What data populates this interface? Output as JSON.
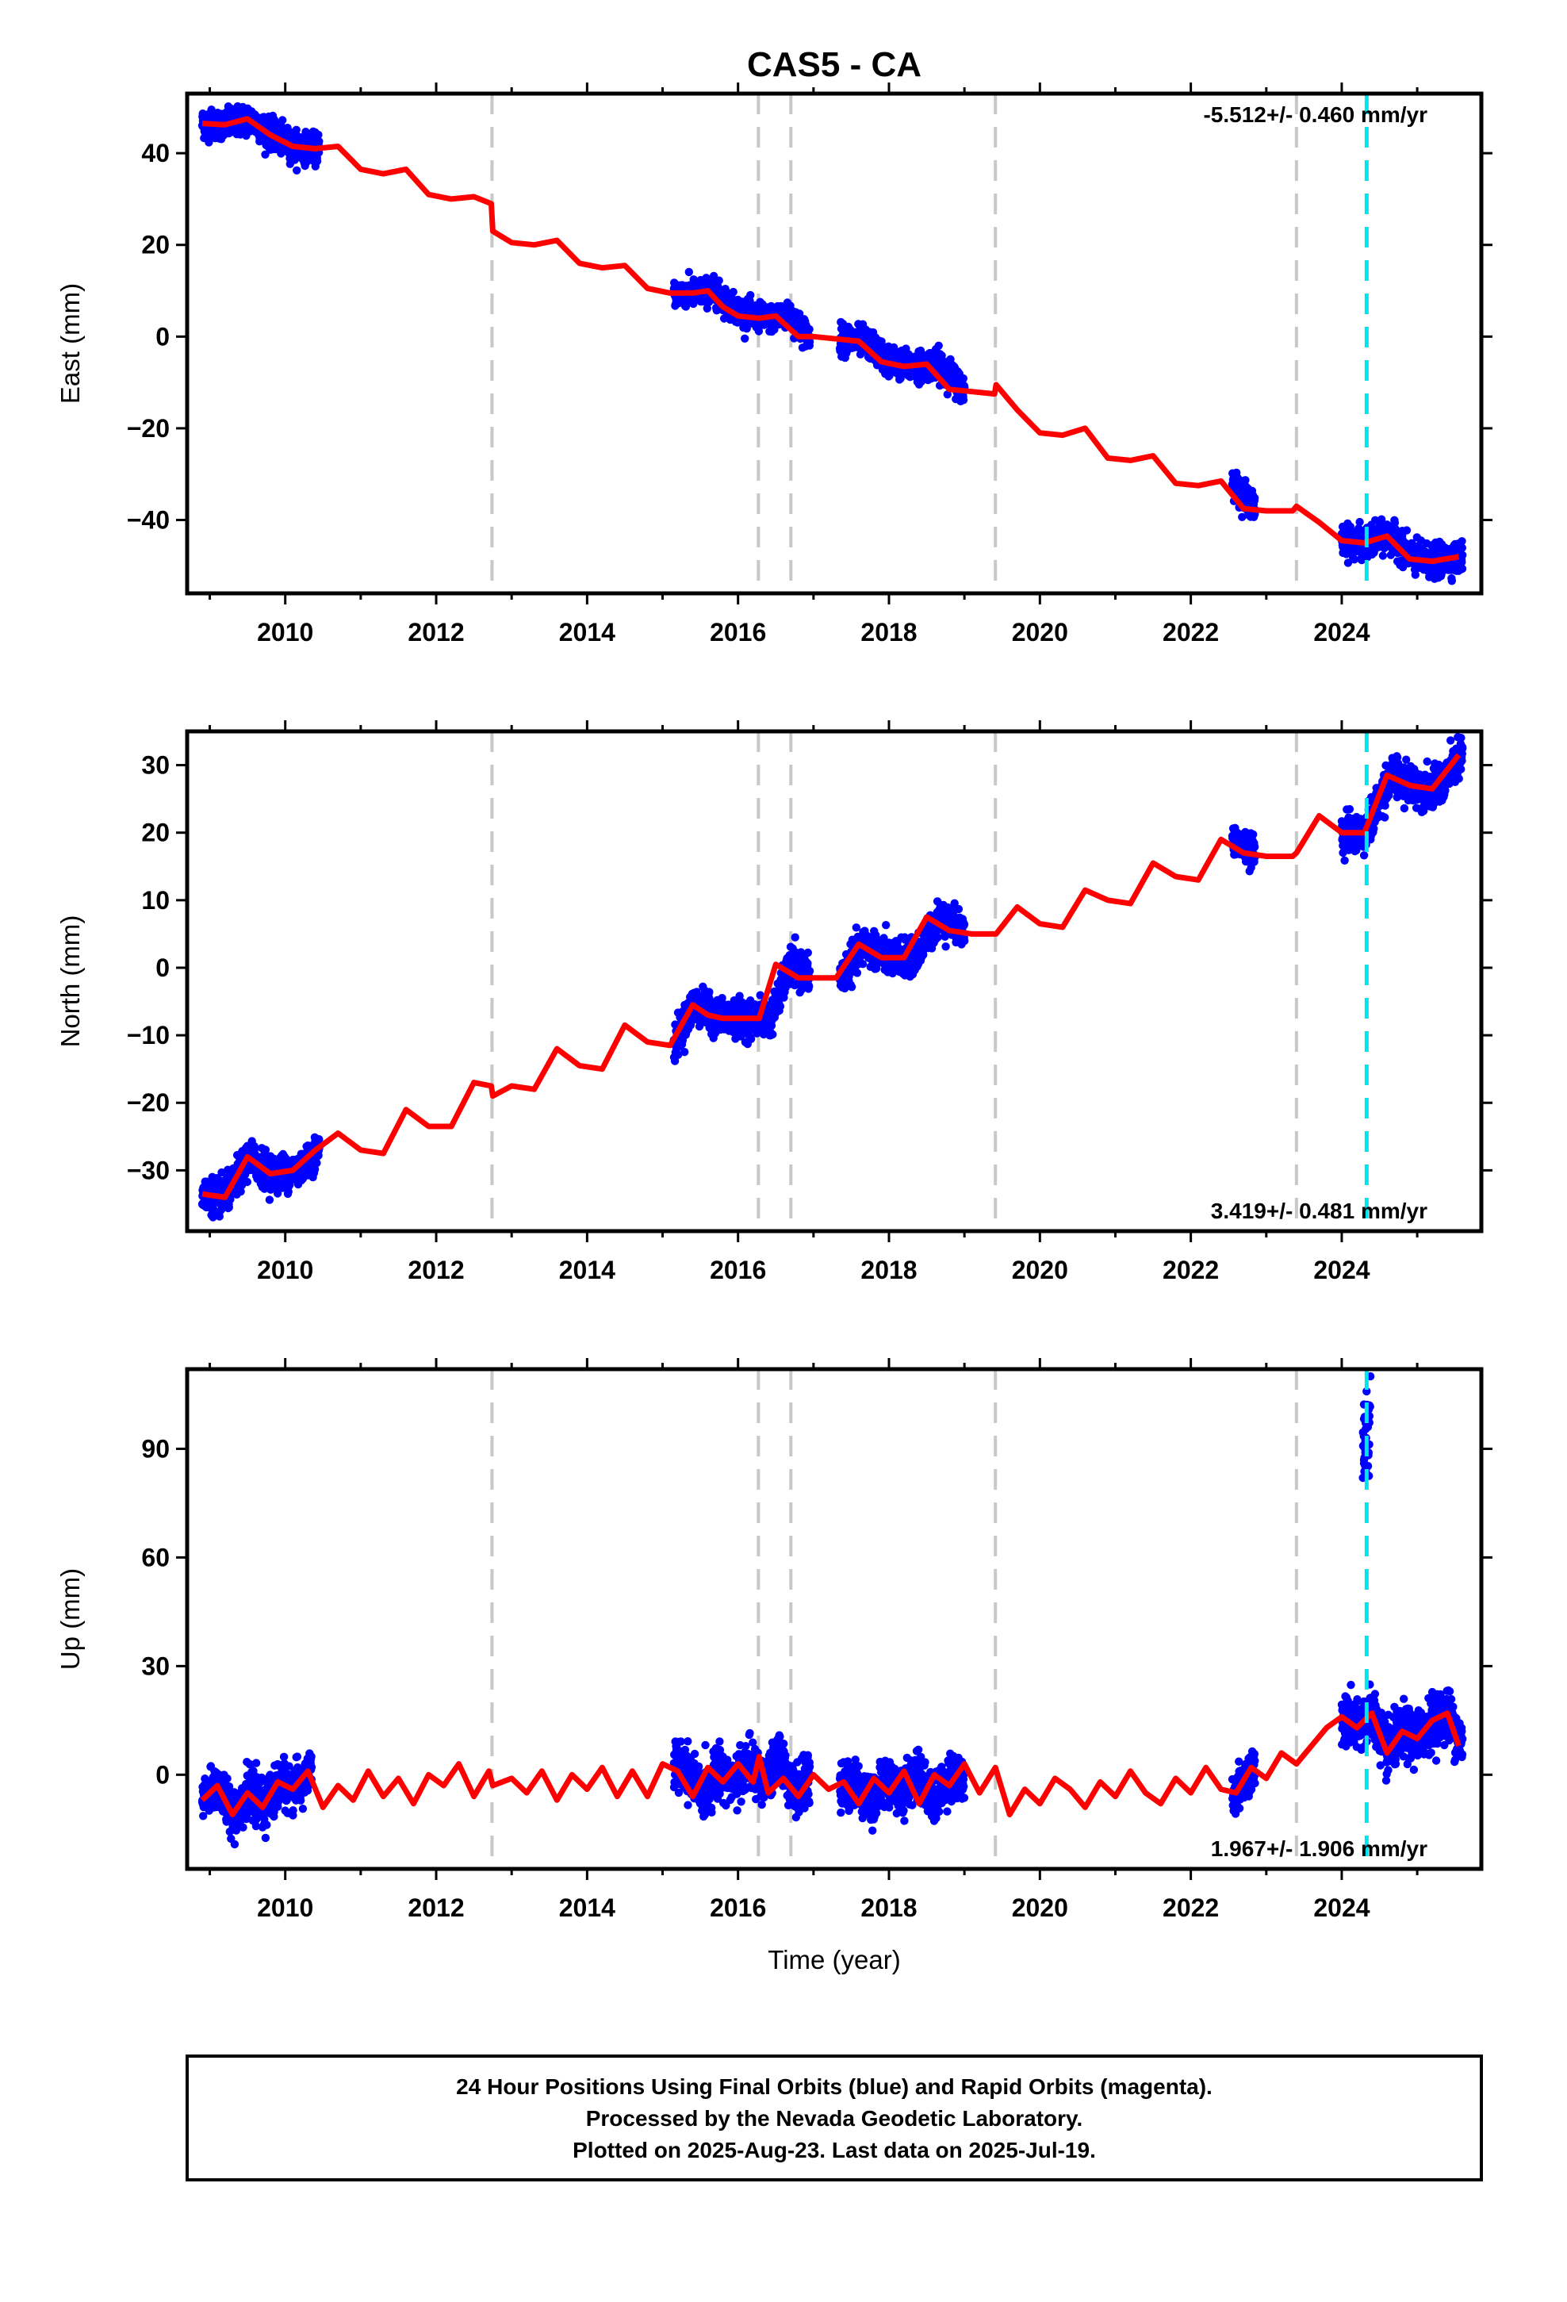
{
  "title": "CAS5 - CA",
  "xlabel": "Time (year)",
  "caption": [
    "24 Hour Positions Using Final Orbits (blue) and Rapid Orbits (magenta).",
    "Processed by the Nevada Geodetic Laboratory.",
    "Plotted on 2025-Aug-23. Last data on 2025-Jul-19."
  ],
  "colors": {
    "data": "#0000ff",
    "model": "#ff0000",
    "equipment_change": "#c8c8c8",
    "earthquake": "#00e5ee"
  },
  "chart_data": [
    {
      "type": "scatter",
      "ylabel": "East (mm)",
      "rate_text": "-5.512+/- 0.460 mm/yr",
      "rate_position": "top-right",
      "xlim": [
        2008.7,
        2025.85
      ],
      "ylim": [
        -56,
        53
      ],
      "xticks": [
        2010,
        2012,
        2014,
        2016,
        2018,
        2020,
        2022,
        2024
      ],
      "xtick_labels": [
        "2010",
        "2012",
        "2014",
        "2016",
        "2018",
        "2020",
        "2022",
        "2024"
      ],
      "yticks": [
        -40,
        -20,
        0,
        20,
        40
      ],
      "ytick_labels": [
        "−40",
        "−20",
        "0",
        "20",
        "40"
      ],
      "model_line": {
        "x": [
          2008.9,
          2009.2,
          2009.5,
          2009.8,
          2010.1,
          2010.4,
          2010.7,
          2011.0,
          2011.3,
          2011.6,
          2011.9,
          2012.2,
          2012.5,
          2012.73,
          2012.75,
          2013.0,
          2013.3,
          2013.6,
          2013.9,
          2014.2,
          2014.5,
          2014.8,
          2015.1,
          2015.4,
          2015.6,
          2015.8,
          2016.0,
          2016.28,
          2016.5,
          2016.8,
          2017.0,
          2017.3,
          2017.6,
          2017.9,
          2018.2,
          2018.5,
          2018.8,
          2019.1,
          2019.4,
          2019.42,
          2019.7,
          2020.0,
          2020.3,
          2020.6,
          2020.9,
          2021.2,
          2021.5,
          2021.8,
          2022.1,
          2022.4,
          2022.7,
          2023.0,
          2023.35,
          2023.4,
          2023.7,
          2024.0,
          2024.3,
          2024.6,
          2024.9,
          2025.2,
          2025.55
        ],
        "y": [
          46.5,
          46.2,
          47.5,
          44.0,
          41.5,
          41.0,
          41.5,
          36.5,
          35.5,
          36.5,
          31.0,
          30.0,
          30.5,
          29.0,
          23.0,
          20.5,
          20.0,
          21.0,
          16.0,
          15.0,
          15.5,
          10.5,
          9.5,
          9.5,
          10.0,
          6.5,
          4.5,
          4.0,
          4.5,
          0.0,
          0.0,
          -0.5,
          -1.0,
          -5.5,
          -6.5,
          -6.0,
          -11.5,
          -12.0,
          -12.5,
          -10.5,
          -16.0,
          -21.0,
          -21.5,
          -20.0,
          -26.5,
          -27.0,
          -26.0,
          -32.0,
          -32.5,
          -31.5,
          -37.5,
          -38.0,
          -38.0,
          -37.0,
          -40.5,
          -44.5,
          -45.0,
          -43.5,
          -48.5,
          -49.0,
          -48.0
        ]
      },
      "data_segments": [
        {
          "x_range": [
            2008.9,
            2010.45
          ],
          "values": [
            46.5,
            46.2,
            47.5,
            44.0,
            41.5,
            41.0
          ],
          "spread": 2.2
        },
        {
          "x_range": [
            2015.15,
            2016.95
          ],
          "values": [
            9.5,
            9.5,
            10.0,
            6.5,
            4.5,
            4.0,
            4.5,
            0.0
          ],
          "spread": 2.0
        },
        {
          "x_range": [
            2017.35,
            2019.0
          ],
          "values": [
            -0.5,
            -1.0,
            -5.5,
            -6.5,
            -6.0,
            -11.5
          ],
          "spread": 2.2
        },
        {
          "x_range": [
            2022.55,
            2022.85
          ],
          "values": [
            -31.5,
            -37.5
          ],
          "spread": 2.0
        },
        {
          "x_range": [
            2024.0,
            2025.6
          ],
          "values": [
            -44.5,
            -45.0,
            -43.5,
            -48.5,
            -49.0,
            -48.0
          ],
          "spread": 2.3
        }
      ],
      "vlines_equipment": [
        2012.74,
        2016.27,
        2016.7,
        2019.41,
        2023.4
      ],
      "vlines_earthquake": [
        2024.33
      ]
    },
    {
      "type": "scatter",
      "ylabel": "North (mm)",
      "rate_text": "3.419+/- 0.481 mm/yr",
      "rate_position": "bottom-right",
      "xlim": [
        2008.7,
        2025.85
      ],
      "ylim": [
        -39,
        35
      ],
      "xticks": [
        2010,
        2012,
        2014,
        2016,
        2018,
        2020,
        2022,
        2024
      ],
      "xtick_labels": [
        "2010",
        "2012",
        "2014",
        "2016",
        "2018",
        "2020",
        "2022",
        "2024"
      ],
      "yticks": [
        -30,
        -20,
        -10,
        0,
        10,
        20,
        30
      ],
      "ytick_labels": [
        "−30",
        "−20",
        "−10",
        "0",
        "10",
        "20",
        "30"
      ],
      "model_line": {
        "x": [
          2008.9,
          2009.2,
          2009.5,
          2009.8,
          2010.1,
          2010.4,
          2010.7,
          2011.0,
          2011.3,
          2011.6,
          2011.9,
          2012.2,
          2012.5,
          2012.73,
          2012.75,
          2013.0,
          2013.3,
          2013.6,
          2013.9,
          2014.2,
          2014.5,
          2014.8,
          2015.1,
          2015.4,
          2015.6,
          2015.8,
          2016.0,
          2016.28,
          2016.5,
          2016.8,
          2017.0,
          2017.3,
          2017.6,
          2017.9,
          2018.2,
          2018.5,
          2018.8,
          2019.1,
          2019.4,
          2019.42,
          2019.7,
          2020.0,
          2020.3,
          2020.6,
          2020.9,
          2021.2,
          2021.5,
          2021.8,
          2022.1,
          2022.4,
          2022.7,
          2023.0,
          2023.35,
          2023.4,
          2023.7,
          2024.0,
          2024.3,
          2024.6,
          2024.9,
          2025.2,
          2025.55
        ],
        "y": [
          -33.5,
          -34.0,
          -28.0,
          -30.5,
          -30.0,
          -27.0,
          -24.5,
          -27.0,
          -27.5,
          -21.0,
          -23.5,
          -23.5,
          -17.0,
          -17.5,
          -19.0,
          -17.5,
          -18.0,
          -12.0,
          -14.5,
          -15.0,
          -8.5,
          -11.0,
          -11.5,
          -5.5,
          -7.0,
          -7.5,
          -7.5,
          -7.5,
          0.5,
          -1.5,
          -1.5,
          -1.5,
          3.5,
          1.5,
          1.5,
          7.5,
          5.5,
          5.0,
          5.0,
          5.0,
          9.0,
          6.5,
          6.0,
          11.5,
          10.0,
          9.5,
          15.5,
          13.5,
          13.0,
          19.0,
          17.0,
          16.5,
          16.5,
          17.0,
          22.5,
          20.0,
          20.0,
          28.5,
          27.0,
          26.5,
          31.5
        ]
      },
      "data_segments": [
        {
          "x_range": [
            2008.9,
            2010.45
          ],
          "values": [
            -33.5,
            -34.0,
            -28.0,
            -30.5,
            -30.0,
            -27.0
          ],
          "spread": 1.8
        },
        {
          "x_range": [
            2015.15,
            2016.95
          ],
          "values": [
            -11.5,
            -5.5,
            -7.0,
            -7.5,
            -7.5,
            -7.5,
            0.5,
            -1.5
          ],
          "spread": 1.8
        },
        {
          "x_range": [
            2017.35,
            2019.0
          ],
          "values": [
            -1.5,
            3.5,
            1.5,
            1.5,
            7.5,
            5.5
          ],
          "spread": 1.8
        },
        {
          "x_range": [
            2022.55,
            2022.85
          ],
          "values": [
            19.0,
            17.0
          ],
          "spread": 1.5
        },
        {
          "x_range": [
            2024.0,
            2025.6
          ],
          "values": [
            20.0,
            20.0,
            28.5,
            27.0,
            26.5,
            31.5
          ],
          "spread": 2.0
        }
      ],
      "vlines_equipment": [
        2012.74,
        2016.27,
        2016.7,
        2019.41,
        2023.4
      ],
      "vlines_earthquake": [
        2024.33
      ]
    },
    {
      "type": "scatter",
      "ylabel": "Up (mm)",
      "rate_text": "1.967+/- 1.906 mm/yr",
      "rate_position": "bottom-right",
      "xlim": [
        2008.7,
        2025.85
      ],
      "ylim": [
        -26,
        112
      ],
      "xticks": [
        2010,
        2012,
        2014,
        2016,
        2018,
        2020,
        2022,
        2024
      ],
      "xtick_labels": [
        "2010",
        "2012",
        "2014",
        "2016",
        "2018",
        "2020",
        "2022",
        "2024"
      ],
      "yticks": [
        0,
        30,
        60,
        90
      ],
      "ytick_labels": [
        "0",
        "30",
        "60",
        "90"
      ],
      "model_line": {
        "x": [
          2008.9,
          2009.1,
          2009.3,
          2009.5,
          2009.7,
          2009.9,
          2010.1,
          2010.3,
          2010.5,
          2010.7,
          2010.9,
          2011.1,
          2011.3,
          2011.5,
          2011.7,
          2011.9,
          2012.1,
          2012.3,
          2012.5,
          2012.7,
          2012.75,
          2013.0,
          2013.2,
          2013.4,
          2013.6,
          2013.8,
          2014.0,
          2014.2,
          2014.4,
          2014.6,
          2014.8,
          2015.0,
          2015.2,
          2015.4,
          2015.6,
          2015.8,
          2016.0,
          2016.2,
          2016.28,
          2016.4,
          2016.6,
          2016.8,
          2017.0,
          2017.2,
          2017.4,
          2017.6,
          2017.8,
          2018.0,
          2018.2,
          2018.4,
          2018.6,
          2018.8,
          2019.0,
          2019.2,
          2019.41,
          2019.6,
          2019.8,
          2020.0,
          2020.2,
          2020.4,
          2020.6,
          2020.8,
          2021.0,
          2021.2,
          2021.4,
          2021.6,
          2021.8,
          2022.0,
          2022.2,
          2022.4,
          2022.6,
          2022.8,
          2023.0,
          2023.2,
          2023.4,
          2023.6,
          2023.8,
          2024.0,
          2024.2,
          2024.4,
          2024.6,
          2024.8,
          2025.0,
          2025.2,
          2025.4,
          2025.55
        ],
        "y": [
          -7.0,
          -3.0,
          -11.0,
          -5.0,
          -9.0,
          -2.0,
          -4.0,
          1.0,
          -9.0,
          -3.0,
          -7.0,
          1.0,
          -6.0,
          -1.0,
          -8.0,
          0.0,
          -3.0,
          3.0,
          -6.0,
          1.0,
          -3.0,
          -1.0,
          -5.0,
          1.0,
          -7.0,
          0.0,
          -4.0,
          2.0,
          -6.0,
          1.0,
          -6.0,
          3.0,
          1.0,
          -6.0,
          2.0,
          -2.0,
          3.0,
          -2.0,
          5.0,
          -5.0,
          -1.0,
          -6.0,
          0.0,
          -4.0,
          -2.0,
          -8.0,
          -1.0,
          -5.0,
          1.0,
          -8.0,
          0.0,
          -3.0,
          3.0,
          -5.0,
          2.0,
          -11.0,
          -4.0,
          -8.0,
          -1.0,
          -4.0,
          -9.0,
          -2.0,
          -6.0,
          1.0,
          -5.0,
          -8.0,
          -1.0,
          -5.0,
          2.0,
          -4.0,
          -5.0,
          2.0,
          -1.0,
          6.0,
          3.0,
          8.0,
          13.0,
          16.0,
          13.0,
          17.0,
          6.0,
          12.0,
          10.0,
          15.0,
          17.0,
          8.0
        ]
      },
      "data_segments": [
        {
          "x_range": [
            2008.9,
            2010.35
          ],
          "values": [
            -7.0,
            -3.0,
            -11.0,
            -5.0,
            -9.0,
            -2.0,
            -4.0,
            1.0
          ],
          "spread": 4.5
        },
        {
          "x_range": [
            2015.15,
            2016.95
          ],
          "values": [
            3.0,
            1.0,
            -6.0,
            2.0,
            -2.0,
            3.0,
            -2.0,
            5.0,
            -5.0,
            -1.0
          ],
          "spread": 4.5
        },
        {
          "x_range": [
            2017.35,
            2019.0
          ],
          "values": [
            -4.0,
            -2.0,
            -8.0,
            -1.0,
            -5.0,
            1.0,
            -8.0,
            0.0,
            -3.0
          ],
          "spread": 4.5
        },
        {
          "x_range": [
            2022.55,
            2022.85
          ],
          "values": [
            -5.0,
            2.0
          ],
          "spread": 4.0
        },
        {
          "x_range": [
            2024.0,
            2025.6
          ],
          "values": [
            16.0,
            13.0,
            17.0,
            6.0,
            12.0,
            10.0,
            15.0,
            17.0,
            8.0
          ],
          "spread": 5.0
        }
      ],
      "outliers": {
        "x_range": [
          2024.28,
          2024.38
        ],
        "values": [
          82,
          86,
          90,
          93,
          96,
          99,
          102,
          110
        ]
      },
      "vlines_equipment": [
        2012.74,
        2016.27,
        2016.7,
        2019.41,
        2023.4
      ],
      "vlines_earthquake": [
        2024.33
      ]
    }
  ]
}
